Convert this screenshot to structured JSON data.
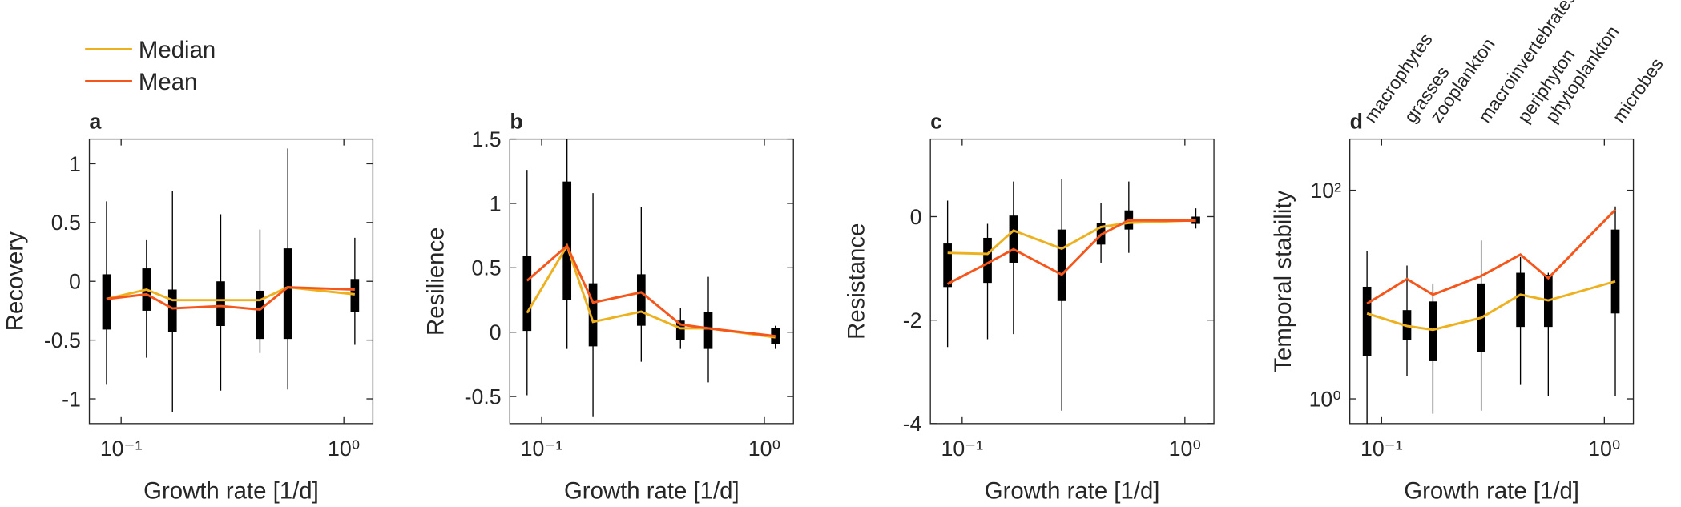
{
  "chart_data": [
    {
      "type": "box",
      "panel_label": "a",
      "ylabel": "Recovery",
      "xlabel": "Growth rate [1/d]",
      "log_x": true,
      "x": [
        0.086,
        0.13,
        0.17,
        0.28,
        0.42,
        0.56,
        1.12
      ],
      "xlim": [
        0.072,
        1.35
      ],
      "xticks": [
        {
          "value": 0.1,
          "label": "10⁻¹"
        },
        {
          "value": 1,
          "label": "10⁰"
        }
      ],
      "ylim": [
        -1.21,
        1.21
      ],
      "yticks": [
        -1,
        -0.5,
        0,
        0.5,
        1
      ],
      "whisker_low": [
        -0.88,
        -0.65,
        -1.11,
        -0.93,
        -0.61,
        -0.92,
        -0.54
      ],
      "q1": [
        -0.41,
        -0.25,
        -0.43,
        -0.38,
        -0.49,
        -0.49,
        -0.26
      ],
      "q3": [
        0.06,
        0.11,
        -0.07,
        0,
        -0.08,
        0.28,
        0.02
      ],
      "whisker_high": [
        0.68,
        0.35,
        0.77,
        0.57,
        0.44,
        1.13,
        0.37
      ],
      "series": [
        {
          "name": "Median",
          "color": "#edb120",
          "values": [
            -0.15,
            -0.07,
            -0.16,
            -0.16,
            -0.16,
            -0.05,
            -0.11
          ]
        },
        {
          "name": "Mean",
          "color": "#f5561c",
          "values": [
            -0.15,
            -0.11,
            -0.23,
            -0.21,
            -0.24,
            -0.05,
            -0.07
          ]
        }
      ]
    },
    {
      "type": "box",
      "panel_label": "b",
      "ylabel": "Resilience",
      "xlabel": "Growth rate [1/d]",
      "log_x": true,
      "x": [
        0.086,
        0.13,
        0.17,
        0.28,
        0.42,
        0.56,
        1.12
      ],
      "xlim": [
        0.072,
        1.35
      ],
      "xticks": [
        {
          "value": 0.1,
          "label": "10⁻¹"
        },
        {
          "value": 1,
          "label": "10⁰"
        }
      ],
      "ylim": [
        -0.71,
        1.5
      ],
      "yticks": [
        -0.5,
        0,
        0.5,
        1,
        1.5
      ],
      "whisker_low": [
        -0.49,
        -0.13,
        -0.66,
        -0.23,
        -0.13,
        -0.39,
        -0.13
      ],
      "q1": [
        0.01,
        0.25,
        -0.11,
        0.05,
        -0.06,
        -0.13,
        -0.09
      ],
      "q3": [
        0.59,
        1.17,
        0.38,
        0.45,
        0.09,
        0.16,
        0.03
      ],
      "whisker_high": [
        1.26,
        1.5,
        1.08,
        0.97,
        0.19,
        0.43,
        0.05
      ],
      "series": [
        {
          "color": "#edb120",
          "values": [
            0.15,
            0.67,
            0.08,
            0.16,
            0.03,
            0.03,
            -0.04
          ]
        },
        {
          "color": "#f5561c",
          "values": [
            0.4,
            0.67,
            0.23,
            0.31,
            0.06,
            0.03,
            -0.03
          ]
        }
      ]
    },
    {
      "type": "box",
      "panel_label": "c",
      "ylabel": "Resistance",
      "xlabel": "Growth rate [1/d]",
      "log_x": true,
      "x": [
        0.086,
        0.13,
        0.17,
        0.28,
        0.42,
        0.56,
        1.12
      ],
      "xlim": [
        0.072,
        1.35
      ],
      "xticks": [
        {
          "value": 0.1,
          "label": "10⁻¹"
        },
        {
          "value": 1,
          "label": "10⁰"
        }
      ],
      "ylim": [
        -4,
        1.5
      ],
      "yticks": [
        -4,
        -2,
        0
      ],
      "whisker_low": [
        -2.52,
        -2.37,
        -2.27,
        -3.75,
        -0.89,
        -0.7,
        -0.23
      ],
      "q1": [
        -1.36,
        -1.28,
        -0.89,
        -1.63,
        -0.54,
        -0.25,
        -0.14
      ],
      "q3": [
        -0.52,
        -0.41,
        0.02,
        -0.25,
        -0.12,
        0.12,
        0
      ],
      "whisker_high": [
        0.31,
        -0.14,
        0.68,
        0.72,
        0.27,
        0.68,
        0.16
      ],
      "series": [
        {
          "color": "#edb120",
          "values": [
            -0.7,
            -0.72,
            -0.27,
            -0.62,
            -0.2,
            -0.12,
            -0.07
          ]
        },
        {
          "color": "#f5561c",
          "values": [
            -1.3,
            -0.9,
            -0.63,
            -1.12,
            -0.35,
            -0.07,
            -0.08
          ]
        }
      ]
    },
    {
      "type": "box",
      "panel_label": "d",
      "ylabel": "Temporal stability",
      "xlabel": "Growth rate [1/d]",
      "log_x": true,
      "log_y": true,
      "categories": [
        "macrophytes",
        "grasses",
        "zooplankton",
        "macroinvertebrates",
        "periphyton",
        "phytoplankton",
        "microbes"
      ],
      "x": [
        0.086,
        0.13,
        0.17,
        0.28,
        0.42,
        0.56,
        1.12
      ],
      "xlim": [
        0.072,
        1.35
      ],
      "xticks": [
        {
          "value": 0.1,
          "label": "10⁻¹"
        },
        {
          "value": 1,
          "label": "10⁰"
        }
      ],
      "ylim": [
        0.58,
        310
      ],
      "yticks": [
        {
          "value": 1,
          "label": "10⁰"
        },
        {
          "value": 100,
          "label": "10²"
        }
      ],
      "whisker_low": [
        0.58,
        1.64,
        0.72,
        0.77,
        1.36,
        1.07,
        1.07
      ],
      "q1": [
        2.57,
        3.7,
        2.3,
        2.8,
        4.9,
        4.9,
        6.6
      ],
      "q3": [
        11.9,
        7.1,
        8.6,
        12.8,
        16.2,
        15.5,
        42
      ],
      "whisker_high": [
        26,
        19,
        12.8,
        33,
        23,
        16.2,
        70
      ],
      "series": [
        {
          "color": "#edb120",
          "values": [
            6.6,
            5,
            4.6,
            6,
            10,
            8.8,
            13.4
          ]
        },
        {
          "color": "#f5561c",
          "values": [
            8.2,
            14.1,
            10,
            15.1,
            24.2,
            14.4,
            65
          ]
        }
      ]
    }
  ]
}
